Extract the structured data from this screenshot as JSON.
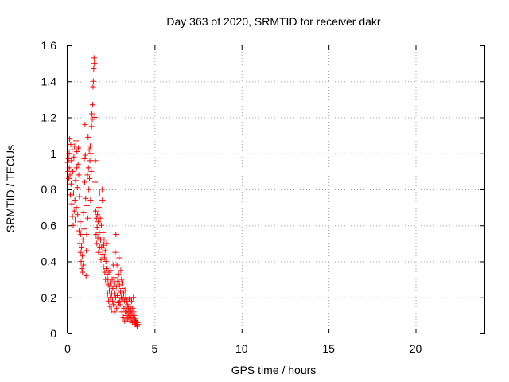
{
  "chart_data": {
    "type": "scatter",
    "title": "Day 363 of 2020, SRMTID for receiver dakr",
    "xlabel": "GPS time / hours",
    "ylabel": "SRMTID / TECUs",
    "xlim": [
      0,
      24
    ],
    "ylim": [
      0,
      1.6
    ],
    "xticks": [
      0,
      5,
      10,
      15,
      20
    ],
    "yticks": [
      0,
      0.2,
      0.4,
      0.6,
      0.8,
      1,
      1.2,
      1.4,
      1.6
    ],
    "xtick_labels": [
      "0",
      "5",
      "10",
      "15",
      "20"
    ],
    "ytick_labels": [
      "0",
      "0.2",
      "0.4",
      "0.6",
      "0.8",
      "1",
      "1.2",
      "1.4",
      "1.6"
    ],
    "grid": true,
    "marker": "+",
    "marker_color": "#ff0000",
    "series": [
      {
        "name": "SRMTID",
        "points": [
          [
            0.0,
            0.95
          ],
          [
            0.03,
            0.9
          ],
          [
            0.05,
            0.97
          ],
          [
            0.07,
            0.86
          ],
          [
            0.09,
            1.0
          ],
          [
            0.1,
            0.92
          ],
          [
            0.12,
            1.08
          ],
          [
            0.14,
            0.88
          ],
          [
            0.16,
            0.77
          ],
          [
            0.18,
            1.05
          ],
          [
            0.2,
            0.83
          ],
          [
            0.22,
            0.96
          ],
          [
            0.24,
            0.72
          ],
          [
            0.26,
            1.02
          ],
          [
            0.28,
            0.65
          ],
          [
            0.3,
            0.9
          ],
          [
            0.32,
            0.6
          ],
          [
            0.34,
            0.78
          ],
          [
            0.36,
            0.98
          ],
          [
            0.38,
            0.68
          ],
          [
            0.4,
            1.04
          ],
          [
            0.42,
            0.74
          ],
          [
            0.44,
            0.63
          ],
          [
            0.46,
            0.85
          ],
          [
            0.48,
            1.07
          ],
          [
            0.5,
            0.7
          ],
          [
            0.52,
            0.92
          ],
          [
            0.54,
            1.01
          ],
          [
            0.56,
            0.81
          ],
          [
            0.58,
            0.66
          ],
          [
            0.6,
            0.94
          ],
          [
            0.62,
            1.03
          ],
          [
            0.64,
            0.88
          ],
          [
            0.66,
            0.57
          ],
          [
            0.68,
            0.76
          ],
          [
            0.7,
            0.5
          ],
          [
            0.72,
            0.62
          ],
          [
            0.74,
            0.45
          ],
          [
            0.76,
            0.55
          ],
          [
            0.78,
            0.4
          ],
          [
            0.8,
            0.48
          ],
          [
            0.82,
            0.36
          ],
          [
            0.84,
            0.43
          ],
          [
            0.86,
            0.34
          ],
          [
            0.88,
            0.52
          ],
          [
            0.9,
            0.38
          ],
          [
            0.92,
            0.67
          ],
          [
            0.94,
            0.58
          ],
          [
            0.96,
            0.97
          ],
          [
            0.98,
            0.84
          ],
          [
            1.0,
            1.16
          ],
          [
            1.02,
            0.99
          ],
          [
            1.04,
            0.75
          ],
          [
            1.06,
            0.32
          ],
          [
            1.08,
            0.46
          ],
          [
            1.1,
            0.55
          ],
          [
            1.12,
            0.71
          ],
          [
            1.14,
            0.88
          ],
          [
            1.16,
            0.64
          ],
          [
            1.18,
            1.09
          ],
          [
            1.2,
            0.92
          ],
          [
            1.22,
            0.8
          ],
          [
            1.24,
            1.02
          ],
          [
            1.26,
            0.86
          ],
          [
            1.28,
            0.96
          ],
          [
            1.3,
            1.04
          ],
          [
            1.32,
            0.74
          ],
          [
            1.34,
            1.0
          ],
          [
            1.36,
            0.9
          ],
          [
            1.38,
            1.15
          ],
          [
            1.4,
            1.22
          ],
          [
            1.42,
            1.19
          ],
          [
            1.44,
            1.27
          ],
          [
            1.46,
            1.37
          ],
          [
            1.48,
            1.4
          ],
          [
            1.5,
            1.47
          ],
          [
            1.52,
            1.53
          ],
          [
            1.54,
            1.5
          ],
          [
            1.56,
            1.2
          ],
          [
            1.58,
            0.84
          ],
          [
            1.6,
            0.96
          ],
          [
            1.62,
            0.68
          ],
          [
            1.64,
            0.55
          ],
          [
            1.66,
            0.64
          ],
          [
            1.68,
            0.5
          ],
          [
            1.7,
            0.59
          ],
          [
            1.72,
            0.66
          ],
          [
            1.74,
            0.53
          ],
          [
            1.76,
            0.62
          ],
          [
            1.78,
            0.45
          ],
          [
            1.8,
            0.7
          ],
          [
            1.82,
            0.56
          ],
          [
            1.84,
            0.78
          ],
          [
            1.86,
            0.48
          ],
          [
            1.88,
            0.64
          ],
          [
            1.9,
            0.52
          ],
          [
            1.92,
            0.41
          ],
          [
            1.94,
            0.6
          ],
          [
            1.96,
            0.48
          ],
          [
            1.98,
            0.8
          ],
          [
            2.0,
            0.74
          ],
          [
            2.02,
            0.44
          ],
          [
            2.04,
            0.56
          ],
          [
            2.06,
            0.37
          ],
          [
            2.08,
            0.49
          ],
          [
            2.1,
            0.52
          ],
          [
            2.12,
            0.42
          ],
          [
            2.14,
            0.34
          ],
          [
            2.16,
            0.46
          ],
          [
            2.18,
            0.3
          ],
          [
            2.2,
            0.4
          ],
          [
            2.22,
            0.36
          ],
          [
            2.24,
            0.5
          ],
          [
            2.26,
            0.28
          ],
          [
            2.28,
            0.33
          ],
          [
            2.3,
            0.22
          ],
          [
            2.32,
            0.3
          ],
          [
            2.34,
            0.27
          ],
          [
            2.36,
            0.18
          ],
          [
            2.38,
            0.34
          ],
          [
            2.4,
            0.24
          ],
          [
            2.42,
            0.15
          ],
          [
            2.44,
            0.28
          ],
          [
            2.46,
            0.2
          ],
          [
            2.48,
            0.35
          ],
          [
            2.5,
            0.26
          ],
          [
            2.52,
            0.13
          ],
          [
            2.54,
            0.22
          ],
          [
            2.56,
            0.3
          ],
          [
            2.58,
            0.18
          ],
          [
            2.6,
            0.25
          ],
          [
            2.62,
            0.38
          ],
          [
            2.64,
            0.16
          ],
          [
            2.66,
            0.28
          ],
          [
            2.68,
            0.22
          ],
          [
            2.7,
            0.12
          ],
          [
            2.72,
            0.31
          ],
          [
            2.74,
            0.45
          ],
          [
            2.76,
            0.2
          ],
          [
            2.78,
            0.55
          ],
          [
            2.8,
            0.26
          ],
          [
            2.82,
            0.14
          ],
          [
            2.84,
            0.38
          ],
          [
            2.86,
            0.21
          ],
          [
            2.88,
            0.29
          ],
          [
            2.9,
            0.17
          ],
          [
            2.92,
            0.33
          ],
          [
            2.94,
            0.24
          ],
          [
            2.96,
            0.42
          ],
          [
            2.98,
            0.18
          ],
          [
            3.0,
            0.27
          ],
          [
            3.02,
            0.16
          ],
          [
            3.04,
            0.23
          ],
          [
            3.06,
            0.35
          ],
          [
            3.08,
            0.2
          ],
          [
            3.1,
            0.3
          ],
          [
            3.12,
            0.12
          ],
          [
            3.14,
            0.25
          ],
          [
            3.16,
            0.19
          ],
          [
            3.18,
            0.28
          ],
          [
            3.2,
            0.09
          ],
          [
            3.22,
            0.22
          ],
          [
            3.24,
            0.14
          ],
          [
            3.26,
            0.18
          ],
          [
            3.28,
            0.07
          ],
          [
            3.3,
            0.24
          ],
          [
            3.32,
            0.12
          ],
          [
            3.34,
            0.2
          ],
          [
            3.36,
            0.15
          ],
          [
            3.38,
            0.1
          ],
          [
            3.4,
            0.18
          ],
          [
            3.42,
            0.13
          ],
          [
            3.44,
            0.08
          ],
          [
            3.46,
            0.16
          ],
          [
            3.48,
            0.11
          ],
          [
            3.5,
            0.14
          ],
          [
            3.52,
            0.09
          ],
          [
            3.54,
            0.19
          ],
          [
            3.56,
            0.12
          ],
          [
            3.58,
            0.07
          ],
          [
            3.6,
            0.15
          ],
          [
            3.62,
            0.1
          ],
          [
            3.64,
            0.13
          ],
          [
            3.66,
            0.08
          ],
          [
            3.68,
            0.18
          ],
          [
            3.7,
            0.11
          ],
          [
            3.72,
            0.06
          ],
          [
            3.74,
            0.14
          ],
          [
            3.76,
            0.09
          ],
          [
            3.78,
            0.2
          ],
          [
            3.8,
            0.12
          ],
          [
            3.82,
            0.07
          ],
          [
            3.84,
            0.1
          ],
          [
            3.86,
            0.06
          ],
          [
            3.88,
            0.08
          ],
          [
            3.9,
            0.05
          ],
          [
            3.92,
            0.07
          ],
          [
            3.94,
            0.06
          ],
          [
            3.96,
            0.05
          ],
          [
            3.98,
            0.06
          ],
          [
            4.0,
            0.04
          ],
          [
            4.02,
            0.06
          ],
          [
            4.04,
            0.05
          ]
        ]
      }
    ]
  }
}
